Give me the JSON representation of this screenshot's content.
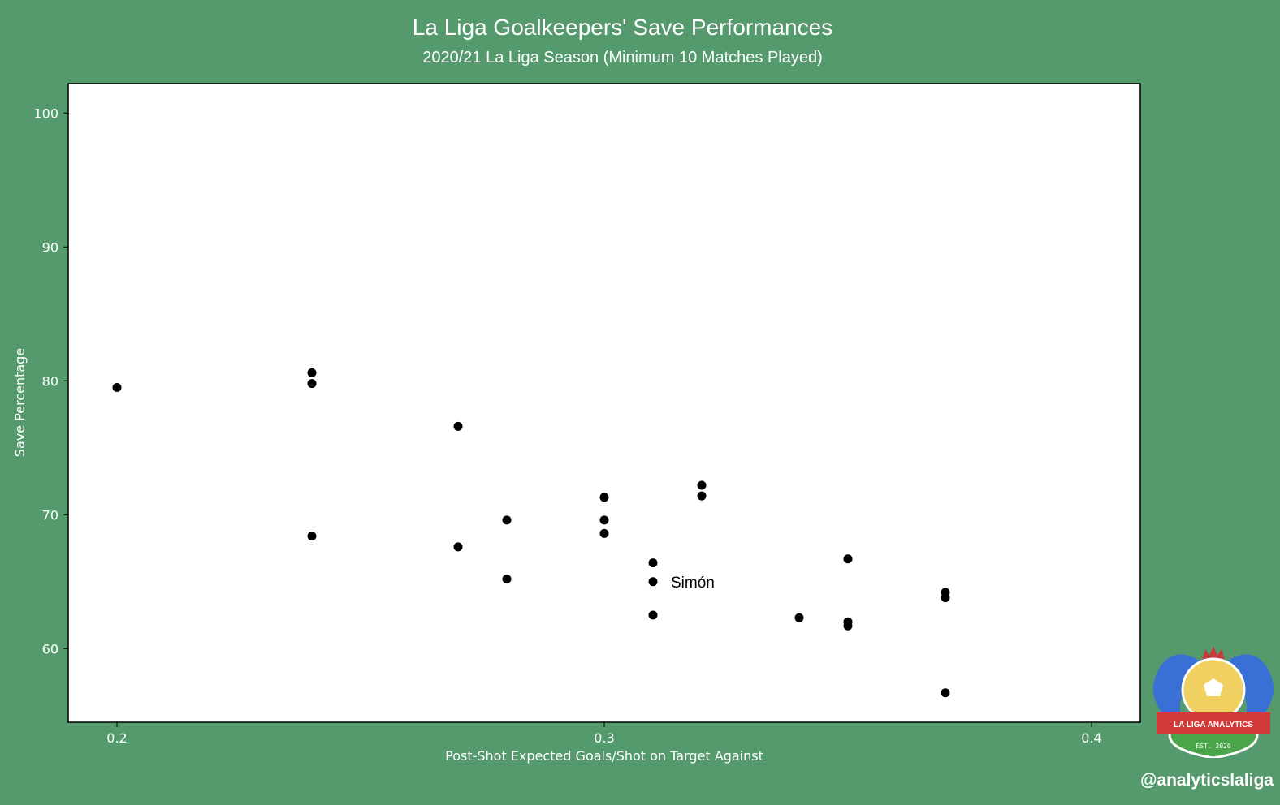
{
  "colors": {
    "background": "#559a6d",
    "plot_background": "#ffffff",
    "point": "#000000",
    "text": "#ffffff"
  },
  "logo": {
    "banner_text": "LA LIGA ANALYTICS",
    "est_text": "EST. 2020"
  },
  "handle": "@analyticslaliga",
  "chart_data": {
    "type": "scatter",
    "title": "La Liga Goalkeepers' Save Performances",
    "subtitle": "2020/21 La Liga Season (Minimum 10 Matches Played)",
    "xlabel": "Post-Shot Expected Goals/Shot on Target Against",
    "ylabel": "Save Percentage",
    "xlim": [
      0.19,
      0.41
    ],
    "ylim": [
      54.5,
      102.2
    ],
    "xticks": [
      0.2,
      0.3,
      0.4
    ],
    "xtick_labels": [
      "0.2",
      "0.3",
      "0.4"
    ],
    "yticks": [
      60,
      70,
      80,
      90,
      100
    ],
    "ytick_labels": [
      "60",
      "70",
      "80",
      "90",
      "100"
    ],
    "grid": false,
    "points": [
      {
        "x": 0.2,
        "y": 79.5
      },
      {
        "x": 0.24,
        "y": 80.6
      },
      {
        "x": 0.24,
        "y": 79.8
      },
      {
        "x": 0.24,
        "y": 68.4
      },
      {
        "x": 0.27,
        "y": 76.6
      },
      {
        "x": 0.27,
        "y": 67.6
      },
      {
        "x": 0.28,
        "y": 69.6
      },
      {
        "x": 0.28,
        "y": 65.2
      },
      {
        "x": 0.3,
        "y": 71.3
      },
      {
        "x": 0.3,
        "y": 69.6
      },
      {
        "x": 0.3,
        "y": 68.6
      },
      {
        "x": 0.31,
        "y": 66.4
      },
      {
        "x": 0.31,
        "y": 65.0
      },
      {
        "x": 0.31,
        "y": 62.5
      },
      {
        "x": 0.32,
        "y": 72.2
      },
      {
        "x": 0.32,
        "y": 71.4
      },
      {
        "x": 0.34,
        "y": 62.3
      },
      {
        "x": 0.35,
        "y": 66.7
      },
      {
        "x": 0.35,
        "y": 62.0
      },
      {
        "x": 0.35,
        "y": 61.7
      },
      {
        "x": 0.37,
        "y": 64.2
      },
      {
        "x": 0.37,
        "y": 63.8
      },
      {
        "x": 0.37,
        "y": 56.7
      }
    ],
    "annotations": [
      {
        "text": "Simón",
        "x": 0.31,
        "y": 65.0
      }
    ]
  }
}
